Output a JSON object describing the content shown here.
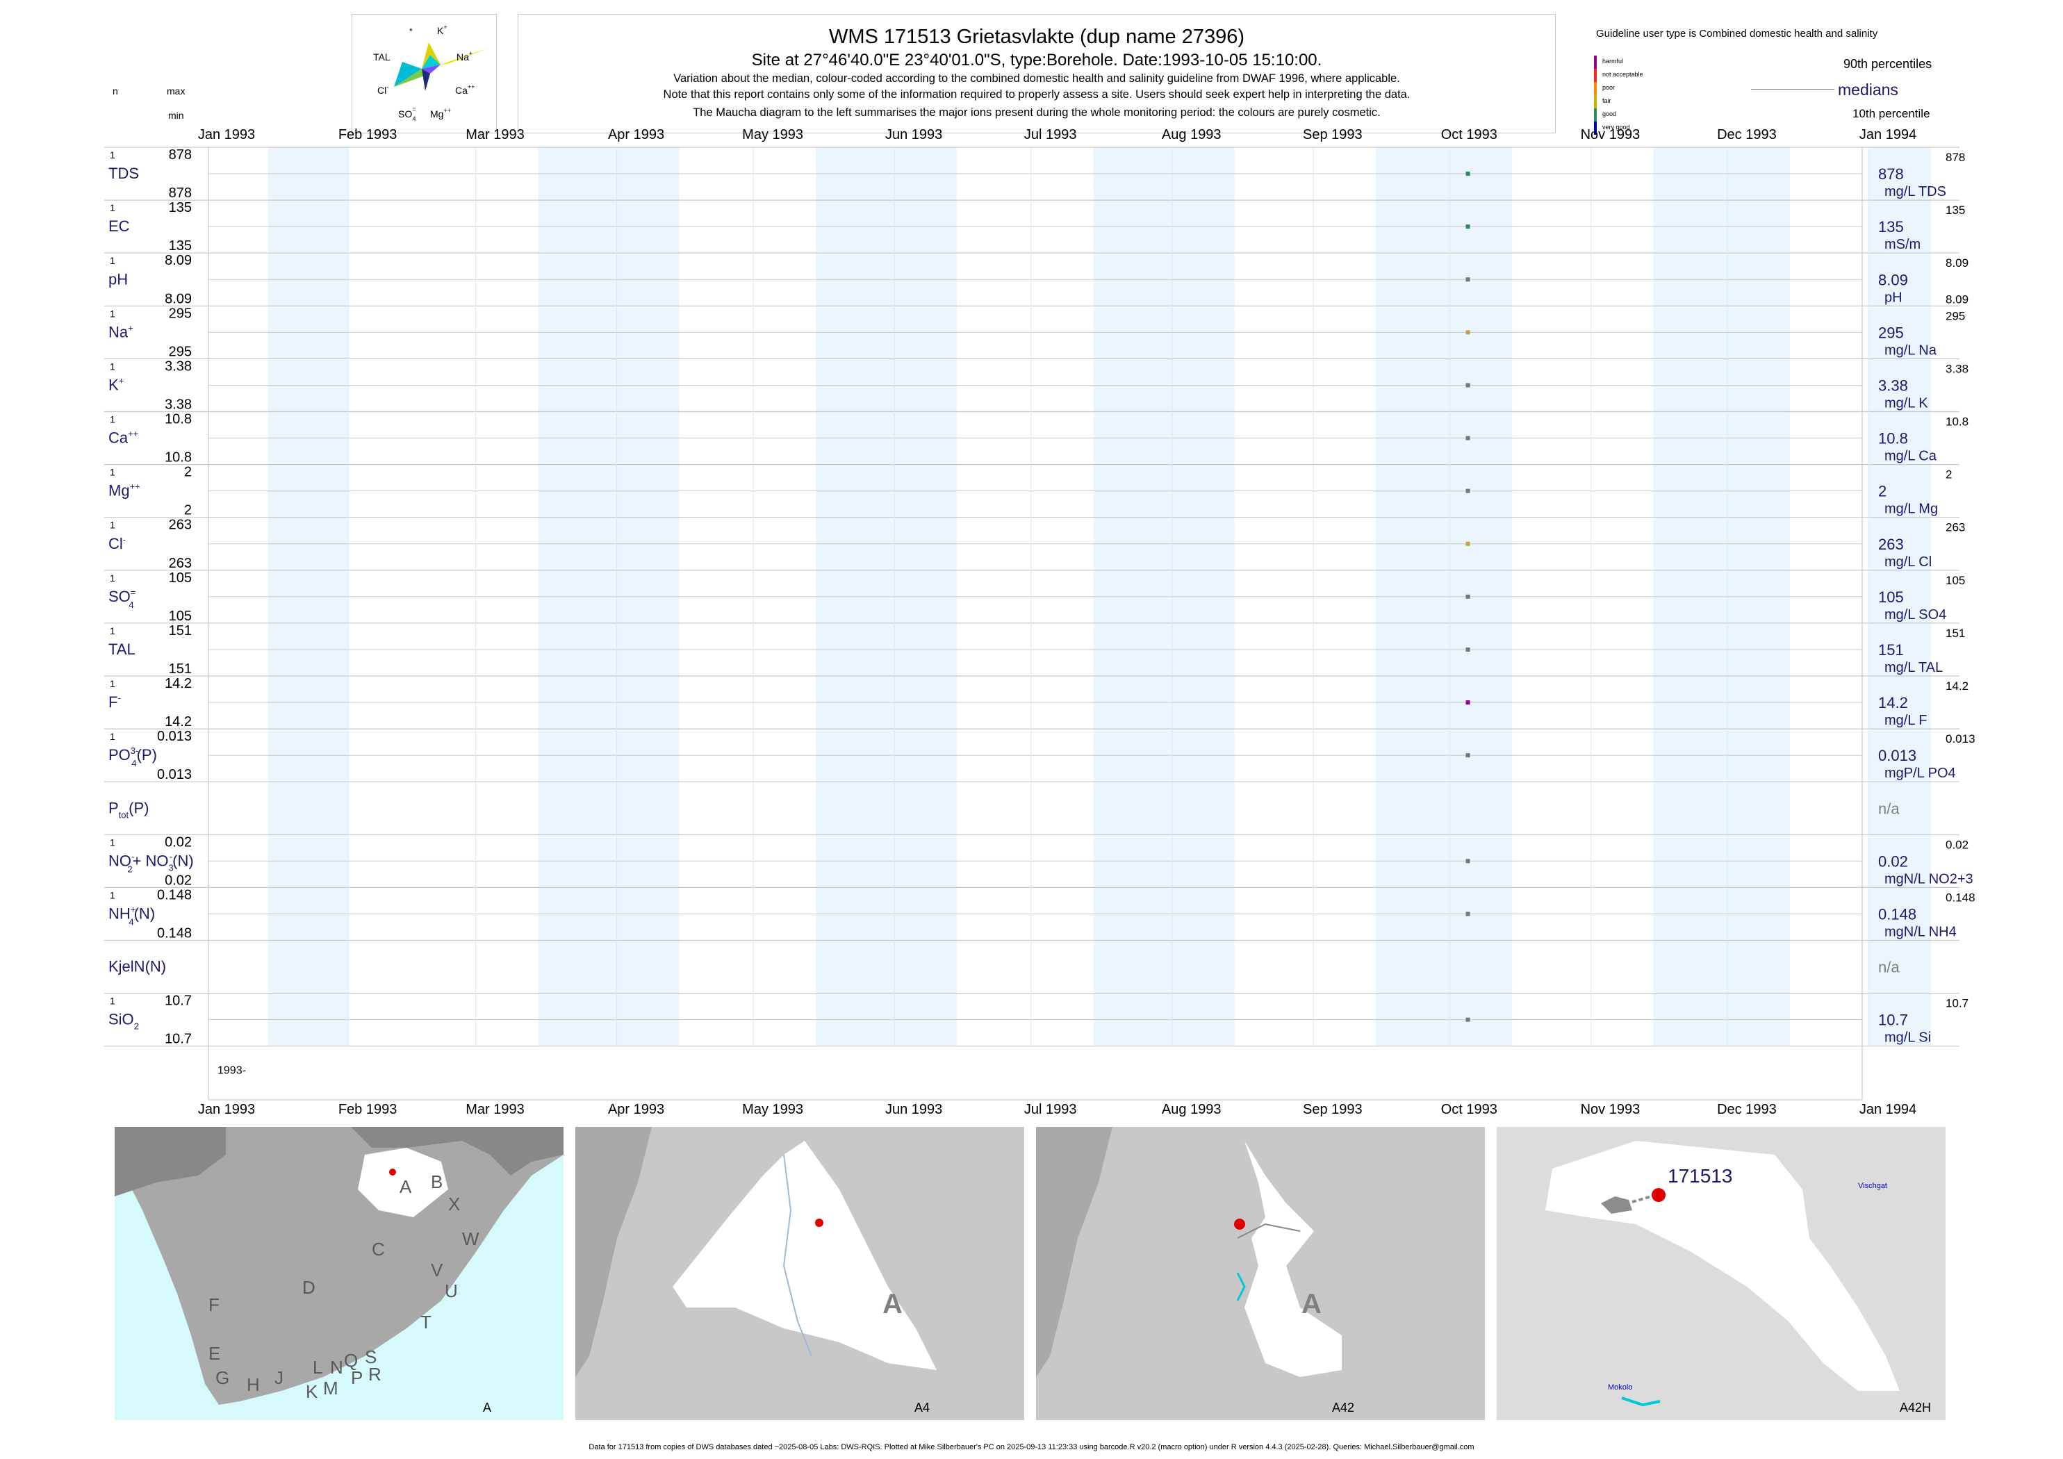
{
  "header": {
    "title": "WMS 171513  Grietasvlakte (dup name 27396)",
    "subtitle": "Site at 27°46'40.0\"E 23°40'01.0\"S, type:Borehole. Date:1993-10-05 15:10:00.",
    "note1": "Variation about the median,  colour-coded according to the combined domestic health and salinity guideline from DWAF 1996, where applicable.",
    "note2": "Note that this report contains only some of the information required to properly assess a site. Users should seek expert help in interpreting the data.",
    "note3": "The Maucha diagram to the left summarises the major ions present during the whole monitoring period: the colours are purely cosmetic."
  },
  "colhead": {
    "n": "n",
    "max": "max",
    "min": "min"
  },
  "maucha": {
    "k": "K",
    "k_sup": "+",
    "star": "*",
    "tal": "TAL",
    "na": "Na",
    "na_sup": "+",
    "cl": "Cl",
    "cl_sup": "-",
    "ca": "Ca",
    "ca_sup": "++",
    "so4": "SO",
    "so4_sup": "=",
    "so4_sub": "4",
    "mg": "Mg",
    "mg_sup": "++"
  },
  "guideline": {
    "title": "Guideline user type is Combined domestic health and salinity",
    "levels": [
      {
        "label": "harmful",
        "color": "#8b008b"
      },
      {
        "label": "not acceptable",
        "color": "#ff2020"
      },
      {
        "label": "poor",
        "color": "#ff8c00"
      },
      {
        "label": "fair",
        "color": "#d2b000"
      },
      {
        "label": "good",
        "color": "#2e8b57"
      },
      {
        "label": "very good",
        "color": "#0000aa"
      }
    ],
    "p90": "90th percentiles",
    "medians": "medians",
    "p10": "10th percentile"
  },
  "chart_data": {
    "type": "scatter",
    "x_range": [
      "1993-01-01",
      "1994-01-01"
    ],
    "month_labels": [
      "Jan 1993",
      "Feb 1993",
      "Mar 1993",
      "Apr 1993",
      "May 1993",
      "Jun 1993",
      "Jul 1993",
      "Aug 1993",
      "Sep 1993",
      "Oct 1993",
      "Nov 1993",
      "Dec 1993",
      "Jan 1994"
    ],
    "year_label": "1993-",
    "sample_date": "1993-10-05",
    "series": [
      {
        "name": "TDS",
        "n": "1",
        "max": "878",
        "min": "878",
        "value": 878,
        "median": "878",
        "p90": "878",
        "p10": "",
        "unit": "mg/L TDS",
        "color": "#2e8b57"
      },
      {
        "name": "EC",
        "n": "1",
        "max": "135",
        "min": "135",
        "value": 135,
        "median": "135",
        "p90": "135",
        "p10": "",
        "unit": "mS/m",
        "color": "#2e8b57"
      },
      {
        "name": "pH",
        "n": "1",
        "max": "8.09",
        "min": "8.09",
        "value": 8.09,
        "median": "8.09",
        "p90": "8.09",
        "p10": "8.09",
        "unit": "pH",
        "color": "#777777"
      },
      {
        "name": "Na",
        "sup": "+",
        "n": "1",
        "max": "295",
        "min": "295",
        "value": 295,
        "median": "295",
        "p90": "295",
        "p10": "",
        "unit": "mg/L Na",
        "color": "#c8a040"
      },
      {
        "name": "K",
        "sup": "+",
        "n": "1",
        "max": "3.38",
        "min": "3.38",
        "value": 3.38,
        "median": "3.38",
        "p90": "3.38",
        "p10": "",
        "unit": "mg/L K",
        "color": "#777777"
      },
      {
        "name": "Ca",
        "sup": "++",
        "n": "1",
        "max": "10.8",
        "min": "10.8",
        "value": 10.8,
        "median": "10.8",
        "p90": "10.8",
        "p10": "",
        "unit": "mg/L Ca",
        "color": "#777777"
      },
      {
        "name": "Mg",
        "sup": "++",
        "n": "1",
        "max": "2",
        "min": "2",
        "value": 2,
        "median": "2",
        "p90": "2",
        "p10": "",
        "unit": "mg/L Mg",
        "color": "#777777"
      },
      {
        "name": "Cl",
        "sup": "-",
        "n": "1",
        "max": "263",
        "min": "263",
        "value": 263,
        "median": "263",
        "p90": "263",
        "p10": "",
        "unit": "mg/L Cl",
        "color": "#c8a040"
      },
      {
        "name": "SO",
        "sup": "=",
        "sub": "4",
        "n": "1",
        "max": "105",
        "min": "105",
        "value": 105,
        "median": "105",
        "p90": "105",
        "p10": "",
        "unit": "mg/L SO4",
        "color": "#777777"
      },
      {
        "name": "TAL",
        "n": "1",
        "max": "151",
        "min": "151",
        "value": 151,
        "median": "151",
        "p90": "151",
        "p10": "",
        "unit": "mg/L TAL",
        "color": "#777777"
      },
      {
        "name": "F",
        "sup": "-",
        "n": "1",
        "max": "14.2",
        "min": "14.2",
        "value": 14.2,
        "median": "14.2",
        "p90": "14.2",
        "p10": "",
        "unit": "mg/L F",
        "color": "#8b008b"
      },
      {
        "name": "PO",
        "sup": "3-",
        "sub": "4",
        "tail": "(P)",
        "n": "1",
        "max": "0.013",
        "min": "0.013",
        "value": 0.013,
        "median": "0.013",
        "p90": "0.013",
        "p10": "",
        "unit": "mgP/L PO4",
        "color": "#777777"
      },
      {
        "name": "P",
        "sub": "tot",
        "tail": "(P)",
        "n": "",
        "max": "",
        "min": "",
        "value": null,
        "median": "n/a",
        "p90": "",
        "p10": "",
        "unit": "",
        "color": "#777777"
      },
      {
        "name": "NO",
        "sub": "2",
        "sup": "-",
        "tail": "+ NO",
        "sub2": "3",
        "sup2": "-",
        "tail2": "(N)",
        "n": "1",
        "max": "0.02",
        "min": "0.02",
        "value": 0.02,
        "median": "0.02",
        "p90": "0.02",
        "p10": "",
        "unit": "mgN/L NO2+3",
        "color": "#777777"
      },
      {
        "name": "NH",
        "sup": "+",
        "sub": "4",
        "tail": "(N)",
        "n": "1",
        "max": "0.148",
        "min": "0.148",
        "value": 0.148,
        "median": "0.148",
        "p90": "0.148",
        "p10": "",
        "unit": "mgN/L NH4",
        "color": "#777777"
      },
      {
        "name": "KjelN(N)",
        "n": "",
        "max": "",
        "min": "",
        "value": null,
        "median": "n/a",
        "p90": "",
        "p10": "",
        "unit": "",
        "color": "#777777"
      },
      {
        "name": "SiO",
        "sub": "2",
        "n": "1",
        "max": "10.7",
        "min": "10.7",
        "value": 10.7,
        "median": "10.7",
        "p90": "10.7",
        "p10": "",
        "unit": "mg/L Si",
        "color": "#777777"
      }
    ]
  },
  "maps": {
    "a_letters": [
      "A",
      "B",
      "X",
      "W",
      "C",
      "D",
      "V",
      "U",
      "T",
      "F",
      "E",
      "G",
      "H",
      "J",
      "K",
      "L",
      "N",
      "M",
      "Q",
      "P",
      "S",
      "R"
    ],
    "a_label": "A",
    "a4_label": "A4",
    "a4_region": "A",
    "a42_label": "A42",
    "a42_region": "A",
    "a42h_label": "A42H",
    "site_label": "171513",
    "place1": "Vischgat",
    "place2": "Mokolo"
  },
  "footer": "Data for 171513 from copies of DWS databases dated ~2025-08-05 Labs: DWS-RQIS. Plotted at Mike Silberbauer's PC on 2025-09-13 11:23:33 using barcode.R v20.2 (macro option) under R version 4.4.3 (2025-02-28). Queries: Michael.Silberbauer@gmail.com"
}
